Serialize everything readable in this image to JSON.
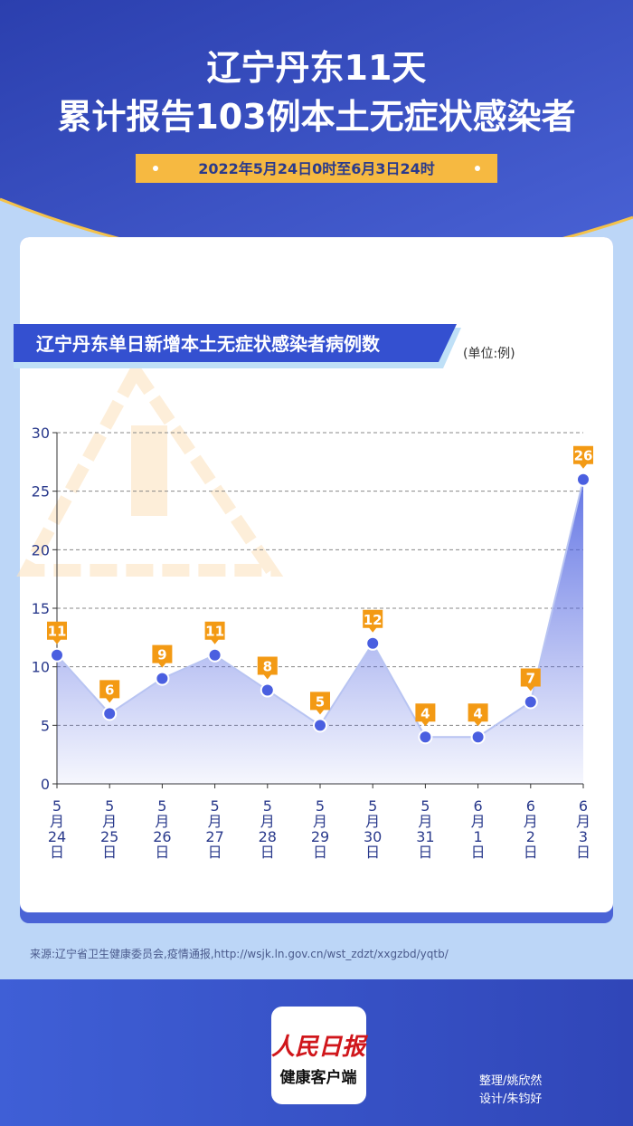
{
  "header": {
    "title_line1": "辽宁丹东11天",
    "title_line2": "累计报告103例本土无症状感染者",
    "subtitle": "2022年5月24日0时至6月3日24时"
  },
  "chart_data": {
    "type": "line",
    "title": "辽宁丹东单日新增本土无症状感染者病例数",
    "unit": "(单位:例)",
    "categories": [
      "5月24日",
      "5月25日",
      "5月26日",
      "5月27日",
      "5月28日",
      "5月29日",
      "5月30日",
      "5月31日",
      "6月1日",
      "6月2日",
      "6月3日"
    ],
    "values": [
      11,
      6,
      9,
      11,
      8,
      5,
      12,
      4,
      4,
      7,
      26
    ],
    "color": "#4a5fe0",
    "ylim": [
      0,
      30
    ],
    "yticks": [
      0,
      5,
      10,
      15,
      20,
      25,
      30
    ],
    "grid": true
  },
  "footer": {
    "source": "来源:辽宁省卫生健康委员会,疫情通报,http://wsjk.ln.gov.cn/wst_zdzt/xxgzbd/yqtb/",
    "logo_name": "人民日报",
    "logo_sub": "健康客户端",
    "credit1": "整理/姚欣然",
    "credit2": "设计/朱钧好"
  }
}
